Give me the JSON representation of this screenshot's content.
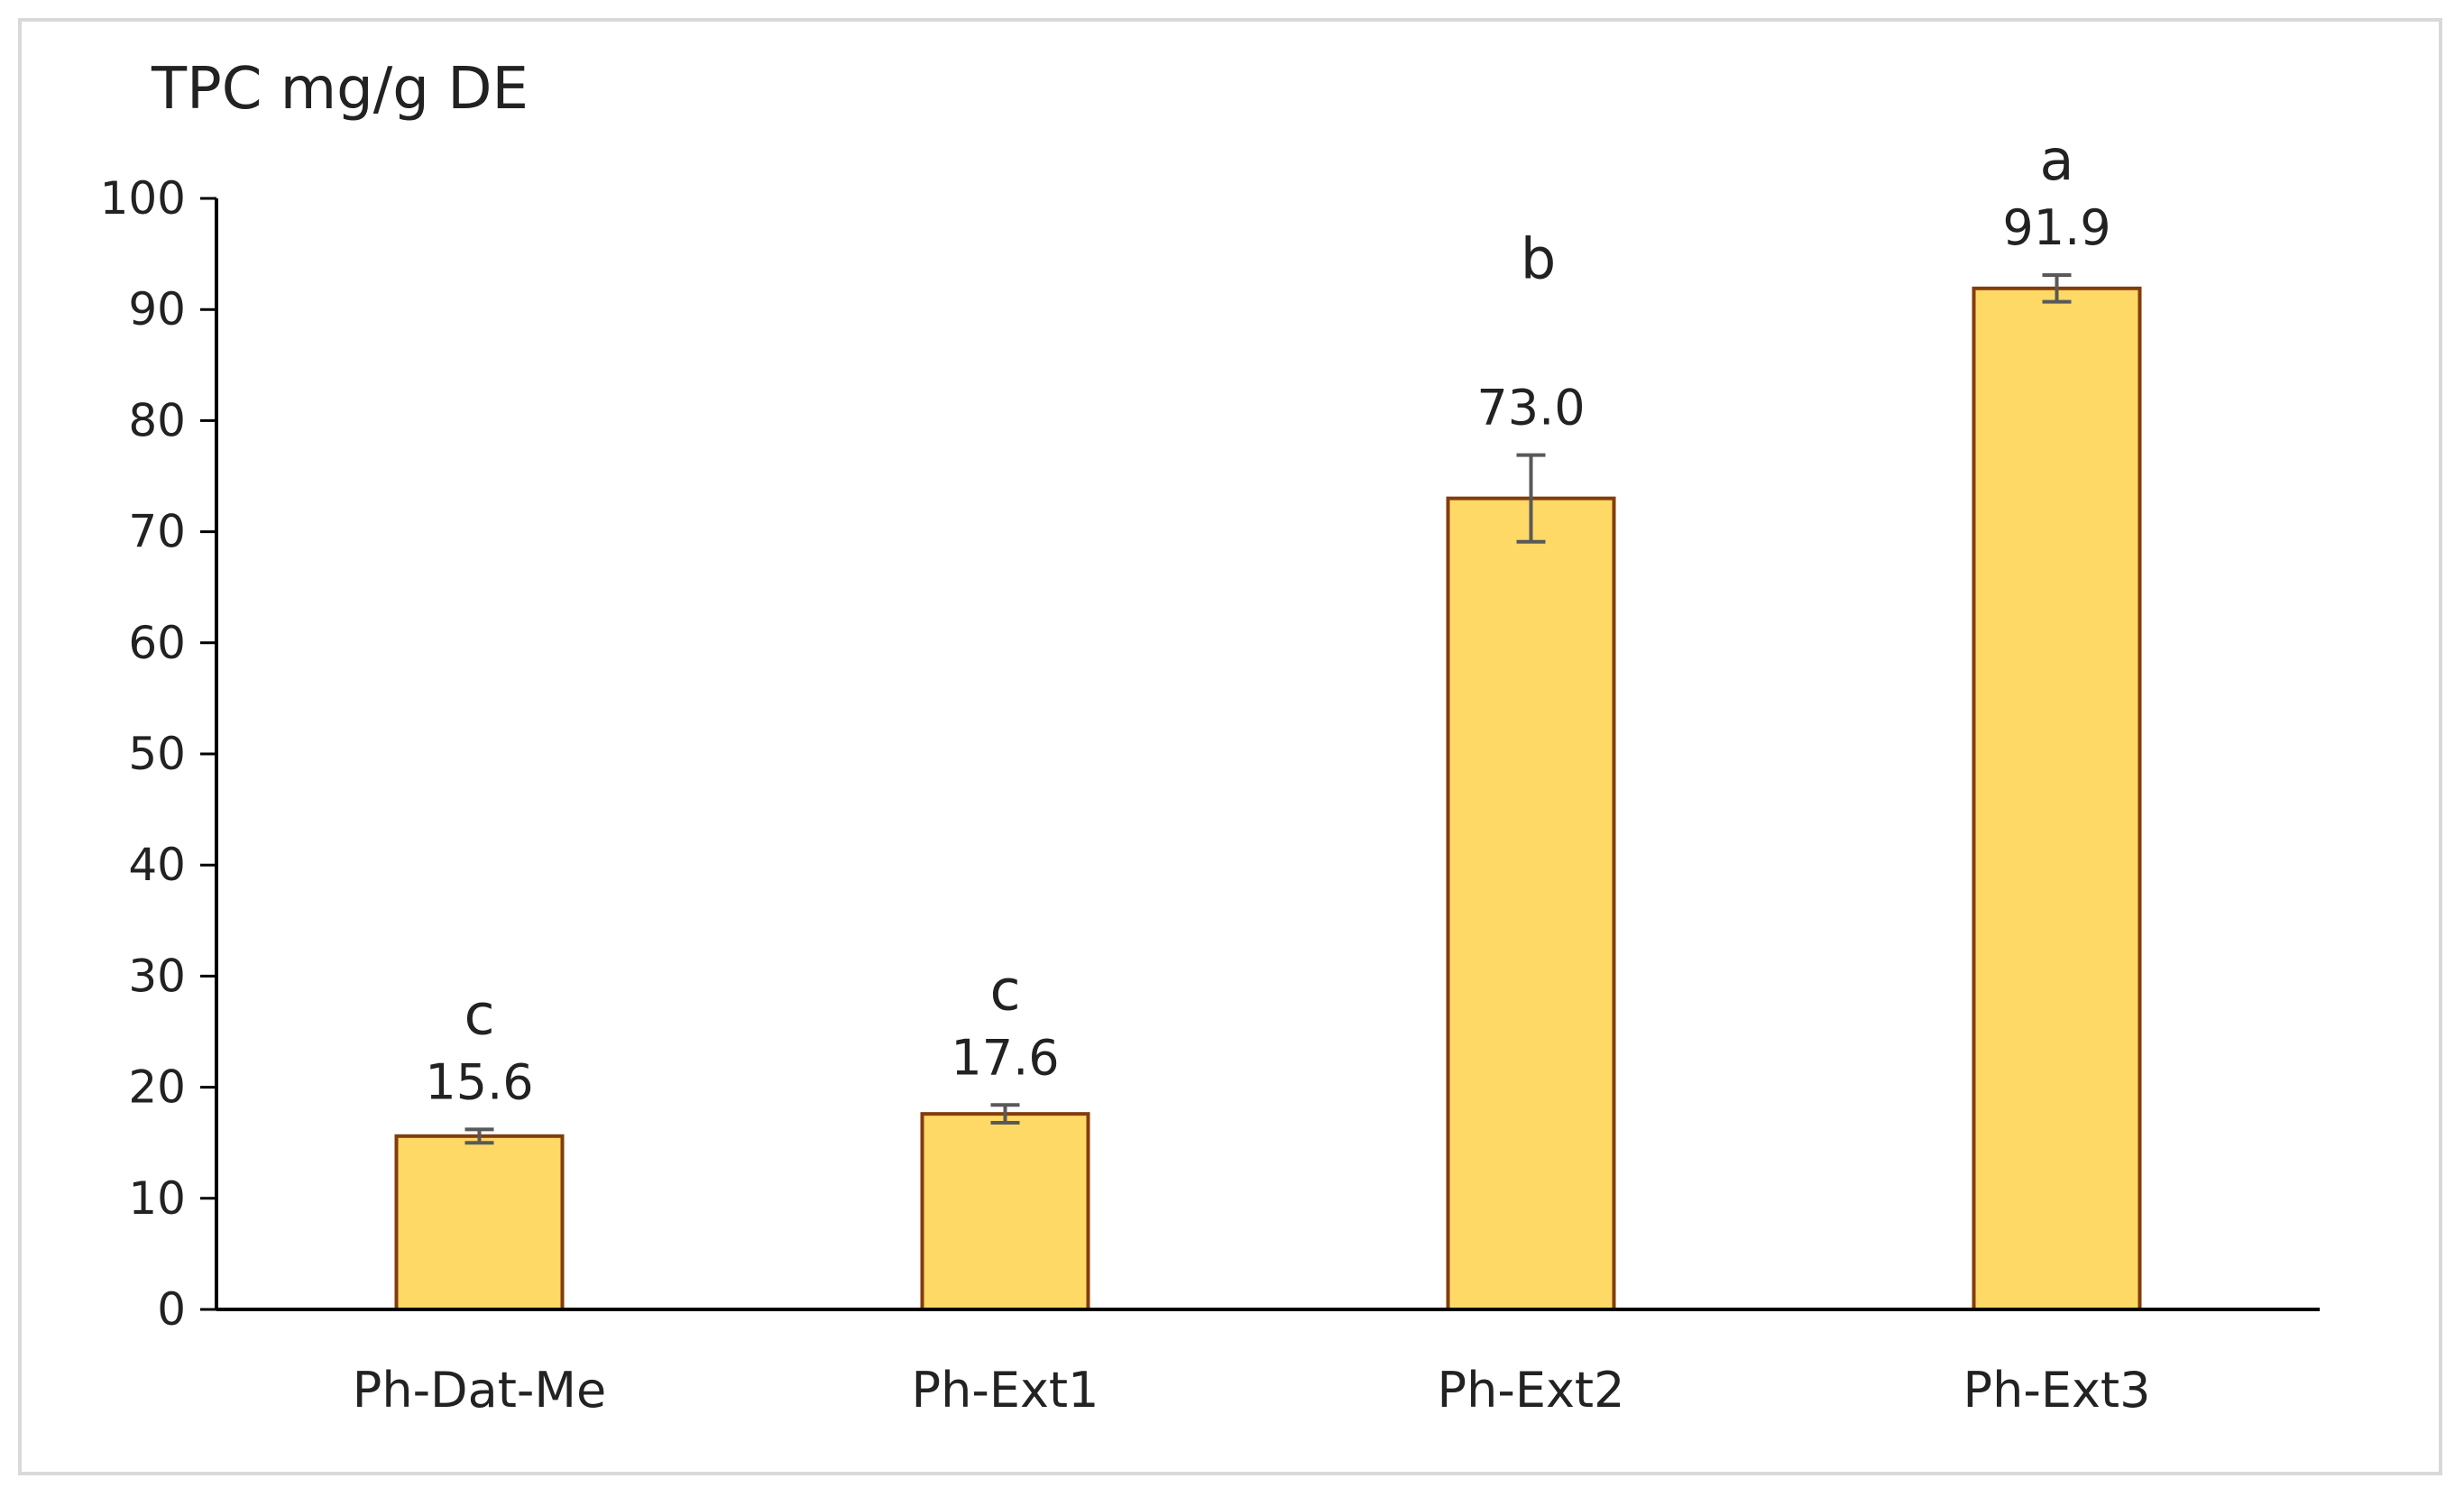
{
  "chart_data": {
    "type": "bar",
    "title": "",
    "ylabel": "TPC mg/g DE",
    "xlabel": "",
    "categories": [
      "Ph-Dat-Me",
      "Ph-Ext1",
      "Ph-Ext2",
      "Ph-Ext3"
    ],
    "values": [
      15.6,
      17.6,
      73.0,
      91.9
    ],
    "value_labels": [
      "15.6",
      "17.6",
      "73.0",
      "91.9"
    ],
    "error": [
      0.6,
      0.8,
      3.9,
      1.2
    ],
    "significance_letters": [
      "c",
      "c",
      "b",
      "a"
    ],
    "ylim": [
      0,
      100
    ],
    "yticks": [
      0,
      10,
      20,
      30,
      40,
      50,
      60,
      70,
      80,
      90,
      100
    ],
    "grid": false,
    "legend": "none",
    "colors": {
      "bar_fill": "#ffd966",
      "bar_stroke": "#843c0c",
      "error_bar": "#595959",
      "axis": "#000000"
    }
  }
}
